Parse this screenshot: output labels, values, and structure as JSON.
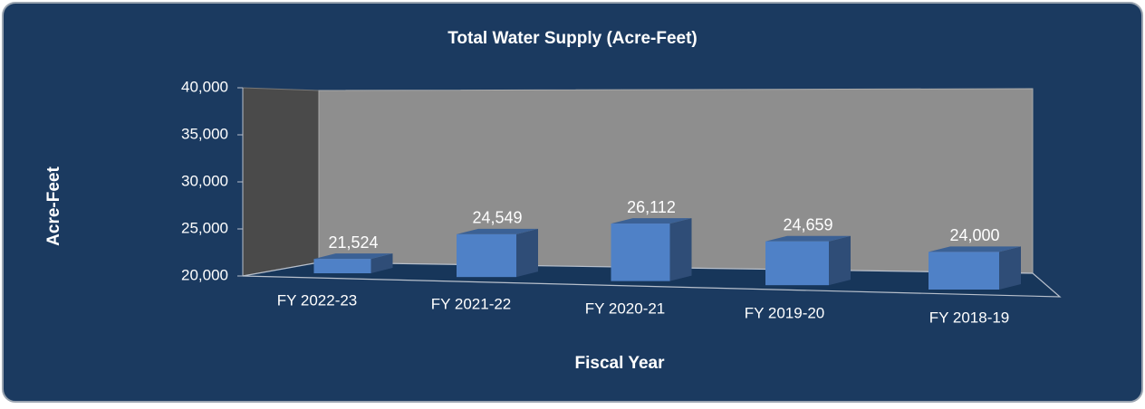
{
  "chart_data": {
    "type": "bar3d",
    "title": "Total Water Supply (Acre-Feet)",
    "x_label": "Fiscal Year",
    "y_label": "Acre-Feet",
    "categories": [
      "FY 2022-23",
      "FY 2021-22",
      "FY 2020-21",
      "FY 2019-20",
      "FY 2018-19"
    ],
    "values": [
      21524,
      24549,
      26112,
      24659,
      24000
    ],
    "value_labels": [
      "21,524",
      "24,549",
      "26,112",
      "24,659",
      "24,000"
    ],
    "color": "#4f81c7",
    "ylim": [
      20000,
      40000
    ],
    "yticks": [
      {
        "value": 20000,
        "label": "20,000"
      },
      {
        "value": 25000,
        "label": "25,000"
      },
      {
        "value": 30000,
        "label": "30,000"
      },
      {
        "value": 35000,
        "label": "35,000"
      },
      {
        "value": 40000,
        "label": "40,000"
      }
    ]
  }
}
